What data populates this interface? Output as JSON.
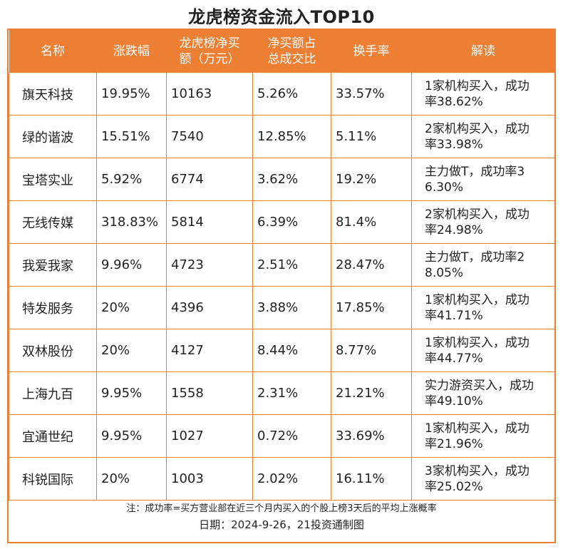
{
  "title": "龙虎榜资金流入TOP10",
  "accent_color": "#ec7f33",
  "table": {
    "headers": [
      "名称",
      "涨跌幅",
      "龙虎榜净买额（万元）",
      "净买额占总成交比",
      "换手率",
      "解读"
    ],
    "header_lines": [
      [
        "名称"
      ],
      [
        "涨跌幅"
      ],
      [
        "龙虎榜净买",
        "额（万元）"
      ],
      [
        "净买额占",
        "总成交比"
      ],
      [
        "换手率"
      ],
      [
        "解读"
      ]
    ],
    "rows": [
      {
        "name": "旗天科技",
        "change": "19.95%",
        "net_buy": "10163",
        "ratio": "5.26%",
        "turnover": "33.57%",
        "read_lines": [
          "1家机构买入，成功",
          "率38.62%"
        ]
      },
      {
        "name": "绿的谐波",
        "change": "15.51%",
        "net_buy": "7540",
        "ratio": "12.85%",
        "turnover": "5.11%",
        "read_lines": [
          "2家机构买入，成功",
          "率33.98%"
        ]
      },
      {
        "name": "宝塔实业",
        "change": "5.92%",
        "net_buy": "6774",
        "ratio": "3.62%",
        "turnover": "19.2%",
        "read_lines": [
          "主力做T，成功率3",
          "6.30%"
        ]
      },
      {
        "name": "无线传媒",
        "change": "318.83%",
        "net_buy": "5814",
        "ratio": "6.39%",
        "turnover": "81.4%",
        "read_lines": [
          "2家机构买入，成功",
          "率24.98%"
        ]
      },
      {
        "name": "我爱我家",
        "change": "9.96%",
        "net_buy": "4723",
        "ratio": "2.51%",
        "turnover": "28.47%",
        "read_lines": [
          "主力做T，成功率2",
          "8.05%"
        ]
      },
      {
        "name": "特发服务",
        "change": "20%",
        "net_buy": "4396",
        "ratio": "3.88%",
        "turnover": "17.85%",
        "read_lines": [
          "1家机构买入，成功",
          "率41.71%"
        ]
      },
      {
        "name": "双林股份",
        "change": "20%",
        "net_buy": "4127",
        "ratio": "8.44%",
        "turnover": "8.77%",
        "read_lines": [
          "1家机构买入，成功",
          "率44.77%"
        ]
      },
      {
        "name": "上海九百",
        "change": "9.95%",
        "net_buy": "1558",
        "ratio": "2.31%",
        "turnover": "21.21%",
        "read_lines": [
          "实力游资买入，成功",
          "率49.10%"
        ]
      },
      {
        "name": "宜通世纪",
        "change": "9.95%",
        "net_buy": "1027",
        "ratio": "0.72%",
        "turnover": "33.69%",
        "read_lines": [
          "1家机构买入，成功",
          "率21.96%"
        ]
      },
      {
        "name": "科锐国际",
        "change": "20%",
        "net_buy": "1003",
        "ratio": "2.02%",
        "turnover": "16.11%",
        "read_lines": [
          "3家机构买入，成功",
          "率25.02%"
        ]
      }
    ]
  },
  "notes": {
    "footnote": "注：成功率=买方营业部在近三个月内买入的个股上榜3天后的平均上涨概率",
    "credit": "日期：2024-9-26，21投资通制图"
  }
}
